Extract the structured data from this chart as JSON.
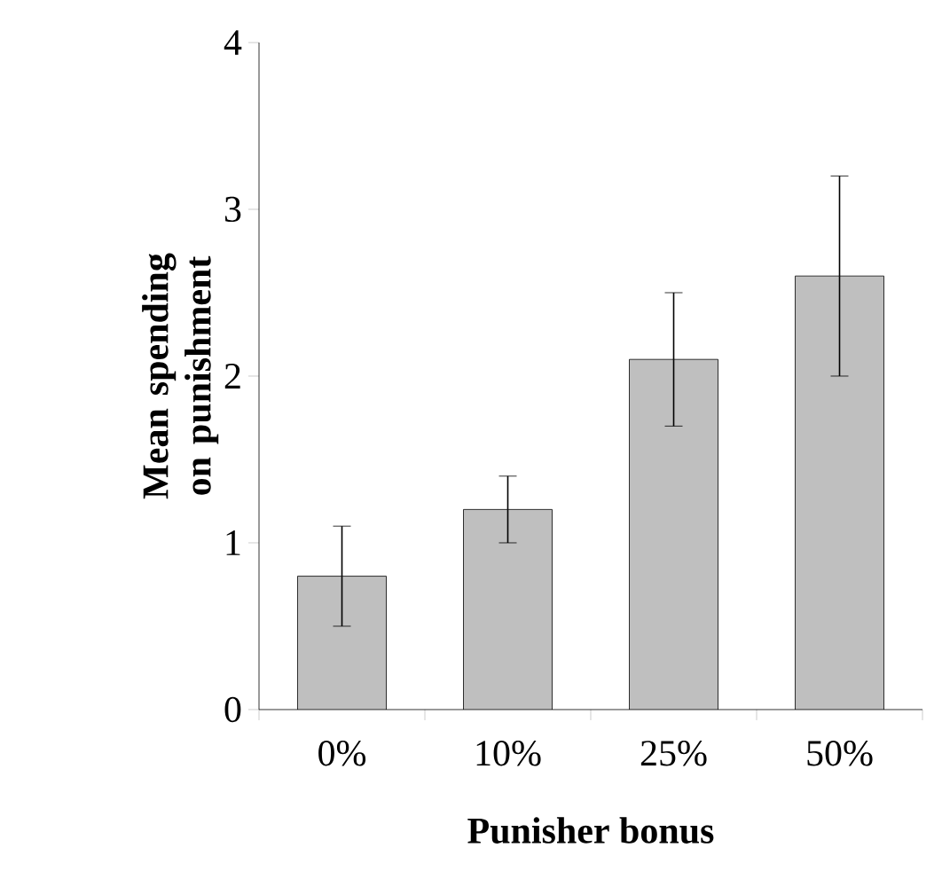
{
  "chart_data": {
    "type": "bar",
    "xlabel": "Punisher bonus",
    "ylabel": "Mean spending on punishment",
    "categories": [
      "0%",
      "10%",
      "25%",
      "50%"
    ],
    "values": [
      0.8,
      1.2,
      2.1,
      2.6
    ],
    "errors": [
      [
        0.5,
        1.1
      ],
      [
        1.0,
        1.4
      ],
      [
        1.7,
        2.5
      ],
      [
        2.0,
        3.2
      ]
    ],
    "color": "#bfbfbf",
    "ylim": [
      0,
      4
    ],
    "yticks": [
      0,
      1,
      2,
      3,
      4
    ],
    "grid": false
  }
}
